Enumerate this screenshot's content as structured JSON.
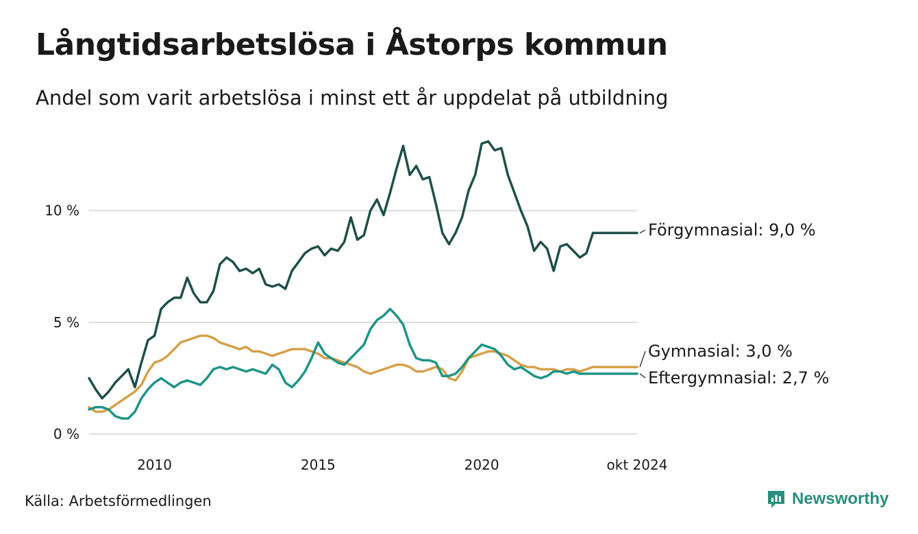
{
  "title": "Långtidsarbetslösa i Åstorps kommun",
  "subtitle": "Andel som varit arbetslösa i minst ett år uppdelat på utbildning",
  "source": "Källa: Arbetsförmedlingen",
  "brand": "Newsworthy",
  "brand_icon": "newsworthy-logo-icon",
  "colors": {
    "grid": "#dddddd",
    "brand": "#2a8f7c"
  },
  "chart_data": {
    "type": "line",
    "title": "Långtidsarbetslösa i Åstorps kommun",
    "xlabel": "",
    "ylabel": "",
    "ylim": [
      0,
      13.3
    ],
    "xlim": [
      2008.0,
      2024.75
    ],
    "y_ticks": [
      {
        "value": 0,
        "label": "0 %"
      },
      {
        "value": 5,
        "label": "5 %"
      },
      {
        "value": 10,
        "label": "10 %"
      }
    ],
    "x_ticks": [
      {
        "value": 2010,
        "label": "2010"
      },
      {
        "value": 2015,
        "label": "2015"
      },
      {
        "value": 2020,
        "label": "2020"
      },
      {
        "value": 2024.75,
        "label": "okt 2024"
      }
    ],
    "grid": true,
    "series": [
      {
        "name": "Förgymnasial",
        "end_label": "Förgymnasial: 9,0 %",
        "color": "#1f4f48",
        "x": [
          2008.0,
          2008.2,
          2008.4,
          2008.6,
          2008.8,
          2009.0,
          2009.2,
          2009.4,
          2009.6,
          2009.8,
          2010.0,
          2010.2,
          2010.4,
          2010.6,
          2010.8,
          2011.0,
          2011.2,
          2011.4,
          2011.6,
          2011.8,
          2012.0,
          2012.2,
          2012.4,
          2012.6,
          2012.8,
          2013.0,
          2013.2,
          2013.4,
          2013.6,
          2013.8,
          2014.0,
          2014.2,
          2014.4,
          2014.6,
          2014.8,
          2015.0,
          2015.2,
          2015.4,
          2015.6,
          2015.8,
          2016.0,
          2016.2,
          2016.4,
          2016.6,
          2016.8,
          2017.0,
          2017.2,
          2017.4,
          2017.6,
          2017.8,
          2018.0,
          2018.2,
          2018.4,
          2018.6,
          2018.8,
          2019.0,
          2019.2,
          2019.4,
          2019.6,
          2019.8,
          2020.0,
          2020.2,
          2020.4,
          2020.6,
          2020.8,
          2021.0,
          2021.2,
          2021.4,
          2021.6,
          2021.8,
          2022.0,
          2022.2,
          2022.4,
          2022.6,
          2022.8,
          2023.0,
          2023.2,
          2023.4,
          2023.6,
          2023.8,
          2024.0,
          2024.2,
          2024.4,
          2024.6,
          2024.75
        ],
        "values": [
          2.5,
          2.0,
          1.6,
          1.9,
          2.3,
          2.6,
          2.9,
          2.1,
          3.2,
          4.2,
          4.4,
          5.6,
          5.9,
          6.1,
          6.1,
          7.0,
          6.3,
          5.9,
          5.9,
          6.4,
          7.6,
          7.9,
          7.7,
          7.3,
          7.4,
          7.2,
          7.4,
          6.7,
          6.6,
          6.7,
          6.5,
          7.3,
          7.7,
          8.1,
          8.3,
          8.4,
          8.0,
          8.3,
          8.2,
          8.6,
          9.7,
          8.7,
          8.9,
          10.0,
          10.5,
          9.8,
          10.8,
          11.9,
          12.9,
          11.6,
          12.0,
          11.4,
          11.5,
          10.3,
          9.0,
          8.5,
          9.0,
          9.7,
          10.9,
          11.6,
          13.0,
          13.1,
          12.7,
          12.8,
          11.6,
          10.8,
          10.0,
          9.3,
          8.2,
          8.6,
          8.3,
          7.3,
          8.4,
          8.5,
          8.2,
          7.9,
          8.1,
          9.0,
          9.0,
          9.0,
          9.0,
          9.0,
          9.0,
          9.0,
          9.0
        ]
      },
      {
        "name": "Gymnasial",
        "end_label": "Gymnasial: 3,0 %",
        "color": "#d4a04a",
        "x": [
          2008.0,
          2008.2,
          2008.4,
          2008.6,
          2008.8,
          2009.0,
          2009.2,
          2009.4,
          2009.6,
          2009.8,
          2010.0,
          2010.2,
          2010.4,
          2010.6,
          2010.8,
          2011.0,
          2011.2,
          2011.4,
          2011.6,
          2011.8,
          2012.0,
          2012.2,
          2012.4,
          2012.6,
          2012.8,
          2013.0,
          2013.2,
          2013.4,
          2013.6,
          2013.8,
          2014.0,
          2014.2,
          2014.4,
          2014.6,
          2014.8,
          2015.0,
          2015.2,
          2015.4,
          2015.6,
          2015.8,
          2016.0,
          2016.2,
          2016.4,
          2016.6,
          2016.8,
          2017.0,
          2017.2,
          2017.4,
          2017.6,
          2017.8,
          2018.0,
          2018.2,
          2018.4,
          2018.6,
          2018.8,
          2019.0,
          2019.2,
          2019.4,
          2019.6,
          2019.8,
          2020.0,
          2020.2,
          2020.4,
          2020.6,
          2020.8,
          2021.0,
          2021.2,
          2021.4,
          2021.6,
          2021.8,
          2022.0,
          2022.2,
          2022.4,
          2022.6,
          2022.8,
          2023.0,
          2023.2,
          2023.4,
          2023.6,
          2023.8,
          2024.0,
          2024.2,
          2024.4,
          2024.6,
          2024.75
        ],
        "values": [
          1.2,
          1.0,
          1.0,
          1.1,
          1.3,
          1.5,
          1.7,
          1.9,
          2.2,
          2.8,
          3.2,
          3.3,
          3.5,
          3.8,
          4.1,
          4.2,
          4.3,
          4.4,
          4.4,
          4.3,
          4.1,
          4.0,
          3.9,
          3.8,
          3.9,
          3.7,
          3.7,
          3.6,
          3.5,
          3.6,
          3.7,
          3.8,
          3.8,
          3.8,
          3.7,
          3.6,
          3.4,
          3.4,
          3.3,
          3.2,
          3.1,
          3.0,
          2.8,
          2.7,
          2.8,
          2.9,
          3.0,
          3.1,
          3.1,
          3.0,
          2.8,
          2.8,
          2.9,
          3.0,
          2.9,
          2.5,
          2.4,
          2.8,
          3.4,
          3.5,
          3.6,
          3.7,
          3.7,
          3.6,
          3.5,
          3.3,
          3.1,
          3.0,
          3.0,
          2.9,
          2.9,
          2.9,
          2.8,
          2.9,
          2.9,
          2.8,
          2.9,
          3.0,
          3.0,
          3.0,
          3.0,
          3.0,
          3.0,
          3.0,
          3.0
        ]
      },
      {
        "name": "Eftergymnasial",
        "end_label": "Eftergymnasial: 2,7 %",
        "color": "#1e9485",
        "x": [
          2008.0,
          2008.2,
          2008.4,
          2008.6,
          2008.8,
          2009.0,
          2009.2,
          2009.4,
          2009.6,
          2009.8,
          2010.0,
          2010.2,
          2010.4,
          2010.6,
          2010.8,
          2011.0,
          2011.2,
          2011.4,
          2011.6,
          2011.8,
          2012.0,
          2012.2,
          2012.4,
          2012.6,
          2012.8,
          2013.0,
          2013.2,
          2013.4,
          2013.6,
          2013.8,
          2014.0,
          2014.2,
          2014.4,
          2014.6,
          2014.8,
          2015.0,
          2015.2,
          2015.4,
          2015.6,
          2015.8,
          2016.0,
          2016.2,
          2016.4,
          2016.6,
          2016.8,
          2017.0,
          2017.2,
          2017.4,
          2017.6,
          2017.8,
          2018.0,
          2018.2,
          2018.4,
          2018.6,
          2018.8,
          2019.0,
          2019.2,
          2019.4,
          2019.6,
          2019.8,
          2020.0,
          2020.2,
          2020.4,
          2020.6,
          2020.8,
          2021.0,
          2021.2,
          2021.4,
          2021.6,
          2021.8,
          2022.0,
          2022.2,
          2022.4,
          2022.6,
          2022.8,
          2023.0,
          2023.2,
          2023.4,
          2023.6,
          2023.8,
          2024.0,
          2024.2,
          2024.4,
          2024.6,
          2024.75
        ],
        "values": [
          1.1,
          1.2,
          1.2,
          1.1,
          0.8,
          0.7,
          0.7,
          1.0,
          1.6,
          2.0,
          2.3,
          2.5,
          2.3,
          2.1,
          2.3,
          2.4,
          2.3,
          2.2,
          2.5,
          2.9,
          3.0,
          2.9,
          3.0,
          2.9,
          2.8,
          2.9,
          2.8,
          2.7,
          3.1,
          2.9,
          2.3,
          2.1,
          2.4,
          2.8,
          3.4,
          4.1,
          3.6,
          3.4,
          3.2,
          3.1,
          3.4,
          3.7,
          4.0,
          4.7,
          5.1,
          5.3,
          5.6,
          5.3,
          4.9,
          4.0,
          3.4,
          3.3,
          3.3,
          3.2,
          2.6,
          2.6,
          2.7,
          3.0,
          3.4,
          3.7,
          4.0,
          3.9,
          3.8,
          3.5,
          3.1,
          2.9,
          3.0,
          2.8,
          2.6,
          2.5,
          2.6,
          2.8,
          2.8,
          2.7,
          2.8,
          2.7,
          2.7,
          2.7,
          2.7,
          2.7,
          2.7,
          2.7,
          2.7,
          2.7,
          2.7
        ]
      }
    ]
  }
}
